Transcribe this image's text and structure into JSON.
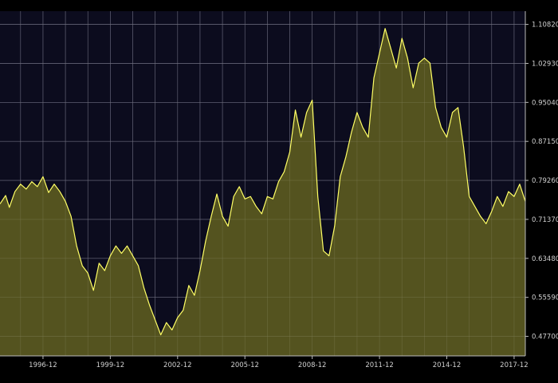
{
  "chart_data": {
    "type": "area",
    "title": "",
    "xlabel": "",
    "ylabel": "",
    "x_tick_labels": [
      "1996-12",
      "1999-12",
      "2002-12",
      "2005-12",
      "2008-12",
      "2011-12",
      "2014-12",
      "2017-12"
    ],
    "y_tick_labels": [
      "0.47700",
      "0.55590",
      "0.63480",
      "0.71370",
      "0.79260",
      "0.87150",
      "0.95040",
      "1.02930",
      "1.10820"
    ],
    "ylim": [
      0.4375,
      1.135
    ],
    "xlim": [
      "1995-01",
      "2018-06"
    ],
    "grid": true,
    "colors": {
      "background": "#000000",
      "plot_background": "#0c0c1e",
      "fill": "#5b5a1f",
      "line": "#ffff66",
      "grid": "#5a5a86",
      "axis_text": "#cfcfcf"
    },
    "series": [
      {
        "points": [
          [
            "1995-01",
            0.745
          ],
          [
            "1995-04",
            0.762
          ],
          [
            "1995-06",
            0.738
          ],
          [
            "1995-09",
            0.77
          ],
          [
            "1995-12",
            0.785
          ],
          [
            "1996-03",
            0.775
          ],
          [
            "1996-06",
            0.79
          ],
          [
            "1996-09",
            0.78
          ],
          [
            "1996-12",
            0.8
          ],
          [
            "1997-03",
            0.768
          ],
          [
            "1997-06",
            0.785
          ],
          [
            "1997-09",
            0.77
          ],
          [
            "1997-12",
            0.75
          ],
          [
            "1998-03",
            0.72
          ],
          [
            "1998-06",
            0.66
          ],
          [
            "1998-09",
            0.62
          ],
          [
            "1998-12",
            0.605
          ],
          [
            "1999-03",
            0.57
          ],
          [
            "1999-06",
            0.625
          ],
          [
            "1999-09",
            0.61
          ],
          [
            "1999-12",
            0.64
          ],
          [
            "2000-03",
            0.66
          ],
          [
            "2000-06",
            0.645
          ],
          [
            "2000-09",
            0.66
          ],
          [
            "2000-12",
            0.64
          ],
          [
            "2001-03",
            0.62
          ],
          [
            "2001-06",
            0.575
          ],
          [
            "2001-09",
            0.54
          ],
          [
            "2001-12",
            0.51
          ],
          [
            "2002-03",
            0.48
          ],
          [
            "2002-06",
            0.505
          ],
          [
            "2002-09",
            0.49
          ],
          [
            "2002-12",
            0.515
          ],
          [
            "2003-03",
            0.53
          ],
          [
            "2003-06",
            0.58
          ],
          [
            "2003-09",
            0.56
          ],
          [
            "2003-12",
            0.61
          ],
          [
            "2004-03",
            0.67
          ],
          [
            "2004-06",
            0.72
          ],
          [
            "2004-09",
            0.765
          ],
          [
            "2004-12",
            0.72
          ],
          [
            "2005-03",
            0.7
          ],
          [
            "2005-06",
            0.76
          ],
          [
            "2005-09",
            0.78
          ],
          [
            "2005-12",
            0.755
          ],
          [
            "2006-03",
            0.76
          ],
          [
            "2006-06",
            0.74
          ],
          [
            "2006-09",
            0.725
          ],
          [
            "2006-12",
            0.76
          ],
          [
            "2007-03",
            0.755
          ],
          [
            "2007-06",
            0.79
          ],
          [
            "2007-09",
            0.81
          ],
          [
            "2007-12",
            0.85
          ],
          [
            "2008-03",
            0.935
          ],
          [
            "2008-06",
            0.88
          ],
          [
            "2008-09",
            0.93
          ],
          [
            "2008-12",
            0.955
          ],
          [
            "2009-03",
            0.76
          ],
          [
            "2009-06",
            0.65
          ],
          [
            "2009-09",
            0.64
          ],
          [
            "2009-12",
            0.7
          ],
          [
            "2010-03",
            0.8
          ],
          [
            "2010-06",
            0.84
          ],
          [
            "2010-09",
            0.89
          ],
          [
            "2010-12",
            0.93
          ],
          [
            "2011-03",
            0.9
          ],
          [
            "2011-06",
            0.88
          ],
          [
            "2011-09",
            1.0
          ],
          [
            "2011-12",
            1.05
          ],
          [
            "2012-03",
            1.1
          ],
          [
            "2012-06",
            1.06
          ],
          [
            "2012-09",
            1.02
          ],
          [
            "2012-12",
            1.08
          ],
          [
            "2013-03",
            1.04
          ],
          [
            "2013-06",
            0.98
          ],
          [
            "2013-09",
            1.03
          ],
          [
            "2013-12",
            1.04
          ],
          [
            "2014-03",
            1.03
          ],
          [
            "2014-06",
            0.94
          ],
          [
            "2014-09",
            0.9
          ],
          [
            "2014-12",
            0.88
          ],
          [
            "2015-03",
            0.93
          ],
          [
            "2015-06",
            0.94
          ],
          [
            "2015-09",
            0.86
          ],
          [
            "2015-12",
            0.76
          ],
          [
            "2016-03",
            0.74
          ],
          [
            "2016-06",
            0.72
          ],
          [
            "2016-09",
            0.705
          ],
          [
            "2016-12",
            0.73
          ],
          [
            "2017-03",
            0.76
          ],
          [
            "2017-06",
            0.74
          ],
          [
            "2017-09",
            0.77
          ],
          [
            "2017-12",
            0.76
          ],
          [
            "2018-03",
            0.785
          ],
          [
            "2018-06",
            0.75
          ]
        ]
      }
    ]
  }
}
